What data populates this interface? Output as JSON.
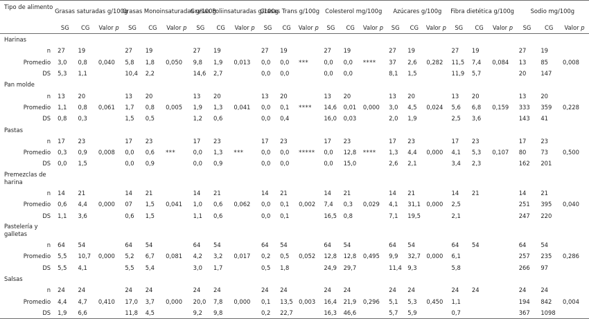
{
  "header": {
    "type_col": "Tipo de alimento",
    "groups": [
      "Grasas saturadas g/100g",
      "Grasas Monoinsaturadas g/100g",
      "Grasas Poliinsaturadas g/100g",
      "Grasas Trans g/100g",
      "Colesterol mg/100g",
      "Azúcares g/100g",
      "Fibra dietética g/100g",
      "Sodio mg/100g"
    ],
    "sub": {
      "sg": "SG",
      "cg": "CG",
      "valor": "Valor",
      "p": "p"
    }
  },
  "rows": [
    {
      "group": "Harinas"
    },
    {
      "label": "n",
      "cells": [
        "27",
        "19",
        "",
        "27",
        "19",
        "",
        "27",
        "19",
        "",
        "27",
        "19",
        "",
        "27",
        "19",
        "",
        "27",
        "19",
        "",
        "27",
        "19",
        "",
        "27",
        "19",
        ""
      ]
    },
    {
      "label": "Promedio",
      "cells": [
        "3,0",
        "0,8",
        "0,040",
        "5,8",
        "1,8",
        "0,050",
        "9,8",
        "1,9",
        "0,013",
        "0,0",
        "0,0",
        "***",
        "0,0",
        "0,0",
        "****",
        "37",
        "2,6",
        "0,282",
        "11,5",
        "7,4",
        "0,084",
        "13",
        "85",
        "0,008"
      ]
    },
    {
      "label": "DS",
      "cells": [
        "5,3",
        "1,1",
        "",
        "10,4",
        "2,2",
        "",
        "14,6",
        "2,7",
        "",
        "0,0",
        "0,0",
        "",
        "0,0",
        "0,0",
        "",
        "8,1",
        "1,5",
        "",
        "11,9",
        "5,7",
        "",
        "20",
        "147",
        ""
      ]
    },
    {
      "group": "Pan molde"
    },
    {
      "label": "n",
      "cells": [
        "13",
        "20",
        "",
        "13",
        "20",
        "",
        "13",
        "20",
        "",
        "13",
        "20",
        "",
        "13",
        "20",
        "",
        "13",
        "20",
        "",
        "13",
        "20",
        "",
        "13",
        "20",
        ""
      ]
    },
    {
      "label": "Promedio",
      "cells": [
        "1,1",
        "0,8",
        "0,061",
        "1,7",
        "0,8",
        "0,005",
        "1,9",
        "1,3",
        "0,041",
        "0,0",
        "0,1",
        "****",
        "14,6",
        "0,01",
        "0,000",
        "3,0",
        "4,5",
        "0,024",
        "5,6",
        "6,8",
        "0,159",
        "333",
        "359",
        "0,228"
      ]
    },
    {
      "label": "DS",
      "cells": [
        "0,8",
        "0,3",
        "",
        "1,5",
        "0,5",
        "",
        "1,2",
        "0,6",
        "",
        "0,0",
        "0,4",
        "",
        "16,0",
        "0,03",
        "",
        "2,0",
        "1,9",
        "",
        "2,5",
        "3,6",
        "",
        "143",
        "41",
        ""
      ]
    },
    {
      "group": "Pastas"
    },
    {
      "label": "n",
      "cells": [
        "17",
        "23",
        "",
        "17",
        "23",
        "",
        "17",
        "23",
        "",
        "17",
        "23",
        "",
        "17",
        "23",
        "",
        "17",
        "23",
        "",
        "17",
        "23",
        "",
        "17",
        "23",
        ""
      ]
    },
    {
      "label": "Promedio",
      "cells": [
        "0,3",
        "0,9",
        "0,008",
        "0,0",
        "0,6",
        "***",
        "0,0",
        "1,3",
        "***",
        "0,0",
        "0,0",
        "*****",
        "0,0",
        "12,8",
        "****",
        "1,3",
        "4,4",
        "0,000",
        "4,1",
        "5,3",
        "0,107",
        "80",
        "73",
        "0,500"
      ]
    },
    {
      "label": "DS",
      "cells": [
        "0,0",
        "1,5",
        "",
        "0,0",
        "0,9",
        "",
        "0,0",
        "0,9",
        "",
        "0,0",
        "0,0",
        "",
        "0,0",
        "15,0",
        "",
        "2,6",
        "2,1",
        "",
        "3,4",
        "2,3",
        "",
        "162",
        "201",
        ""
      ]
    },
    {
      "group": "Premezclas de harina",
      "group_line2": true
    },
    {
      "label": "n",
      "cells": [
        "14",
        "21",
        "",
        "14",
        "21",
        "",
        "14",
        "21",
        "",
        "14",
        "21",
        "",
        "14",
        "21",
        "",
        "14",
        "21",
        "",
        "14",
        "21",
        "",
        "14",
        "21",
        ""
      ]
    },
    {
      "label": "Promedio",
      "cells": [
        "0,6",
        "4,4",
        "0,000",
        "07",
        "1,5",
        "0,041",
        "1,0",
        "0,6",
        "0,062",
        "0,0",
        "0,1",
        "0,002",
        "7,4",
        "0,3",
        "0,029",
        "4,1",
        "31,1",
        "0,000",
        "2,5",
        "",
        "",
        "251",
        "395",
        "0,040"
      ]
    },
    {
      "label": "DS",
      "cells": [
        "1,1",
        "3,6",
        "",
        "0,6",
        "1,5",
        "",
        "1,1",
        "0,6",
        "",
        "0,0",
        "0,1",
        "",
        "16,5",
        "0,8",
        "",
        "7,1",
        "19,5",
        "",
        "2,1",
        "",
        "",
        "247",
        "220",
        ""
      ]
    },
    {
      "group": "Pastelería y galletas",
      "group_line2": true
    },
    {
      "label": "n",
      "cells": [
        "64",
        "54",
        "",
        "64",
        "54",
        "",
        "64",
        "54",
        "",
        "64",
        "54",
        "",
        "64",
        "54",
        "",
        "64",
        "54",
        "",
        "64",
        "54",
        "",
        "64",
        "54",
        ""
      ]
    },
    {
      "label": "Promedio",
      "cells": [
        "5,5",
        "10,7",
        "0,000",
        "5,2",
        "6,7",
        "0,081",
        "4,2",
        "3,2",
        "0,017",
        "0,2",
        "0,5",
        "0,052",
        "12,8",
        "12,8",
        "0,495",
        "9,9",
        "32,7",
        "0,000",
        "6,1",
        "",
        "",
        "257",
        "235",
        "0,286"
      ]
    },
    {
      "label": "DS",
      "cells": [
        "5,5",
        "4,1",
        "",
        "5,5",
        "5,4",
        "",
        "3,0",
        "1,7",
        "",
        "0,5",
        "1,8",
        "",
        "24,9",
        "29,7",
        "",
        "11,4",
        "9,3",
        "",
        "5,8",
        "",
        "",
        "266",
        "97",
        ""
      ]
    },
    {
      "group": "Salsas"
    },
    {
      "label": "n",
      "cells": [
        "24",
        "24",
        "",
        "24",
        "24",
        "",
        "24",
        "24",
        "",
        "24",
        "24",
        "",
        "24",
        "24",
        "",
        "24",
        "24",
        "",
        "24",
        "24",
        "",
        "24",
        "24",
        ""
      ]
    },
    {
      "label": "Promedio",
      "cells": [
        "4,4",
        "4,7",
        "0,410",
        "17,0",
        "3,7",
        "0,000",
        "20,0",
        "7,8",
        "0,000",
        "0,1",
        "13,5",
        "0,003",
        "16,4",
        "21,9",
        "0,296",
        "5,1",
        "5,3",
        "0,450",
        "1,1",
        "",
        "",
        "194",
        "842",
        "0,004"
      ]
    },
    {
      "label": "DS",
      "cells": [
        "1,9",
        "6,6",
        "",
        "11,8",
        "4,5",
        "",
        "9,2",
        "9,8",
        "",
        "0,2",
        "22,7",
        "",
        "16,3",
        "46,6",
        "",
        "5,7",
        "5,9",
        "",
        "0,7",
        "",
        "",
        "367",
        "1098",
        ""
      ]
    }
  ]
}
